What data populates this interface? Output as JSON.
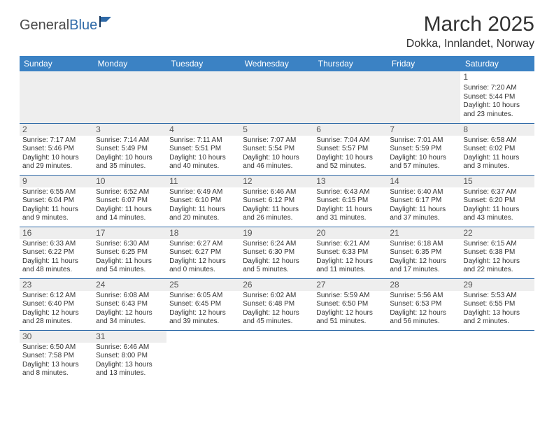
{
  "brand": {
    "part1": "General",
    "part2": "Blue"
  },
  "title": "March 2025",
  "location": "Dokka, Innlandet, Norway",
  "colors": {
    "header_bg": "#3b82c4",
    "header_text": "#ffffff",
    "rule": "#2f6aa8",
    "shade": "#eeeeee",
    "text": "#333333"
  },
  "day_headers": [
    "Sunday",
    "Monday",
    "Tuesday",
    "Wednesday",
    "Thursday",
    "Friday",
    "Saturday"
  ],
  "weeks": [
    [
      null,
      null,
      null,
      null,
      null,
      null,
      {
        "n": "1",
        "sunrise": "Sunrise: 7:20 AM",
        "sunset": "Sunset: 5:44 PM",
        "daylight": "Daylight: 10 hours and 23 minutes."
      }
    ],
    [
      {
        "n": "2",
        "sunrise": "Sunrise: 7:17 AM",
        "sunset": "Sunset: 5:46 PM",
        "daylight": "Daylight: 10 hours and 29 minutes."
      },
      {
        "n": "3",
        "sunrise": "Sunrise: 7:14 AM",
        "sunset": "Sunset: 5:49 PM",
        "daylight": "Daylight: 10 hours and 35 minutes."
      },
      {
        "n": "4",
        "sunrise": "Sunrise: 7:11 AM",
        "sunset": "Sunset: 5:51 PM",
        "daylight": "Daylight: 10 hours and 40 minutes."
      },
      {
        "n": "5",
        "sunrise": "Sunrise: 7:07 AM",
        "sunset": "Sunset: 5:54 PM",
        "daylight": "Daylight: 10 hours and 46 minutes."
      },
      {
        "n": "6",
        "sunrise": "Sunrise: 7:04 AM",
        "sunset": "Sunset: 5:57 PM",
        "daylight": "Daylight: 10 hours and 52 minutes."
      },
      {
        "n": "7",
        "sunrise": "Sunrise: 7:01 AM",
        "sunset": "Sunset: 5:59 PM",
        "daylight": "Daylight: 10 hours and 57 minutes."
      },
      {
        "n": "8",
        "sunrise": "Sunrise: 6:58 AM",
        "sunset": "Sunset: 6:02 PM",
        "daylight": "Daylight: 11 hours and 3 minutes."
      }
    ],
    [
      {
        "n": "9",
        "sunrise": "Sunrise: 6:55 AM",
        "sunset": "Sunset: 6:04 PM",
        "daylight": "Daylight: 11 hours and 9 minutes."
      },
      {
        "n": "10",
        "sunrise": "Sunrise: 6:52 AM",
        "sunset": "Sunset: 6:07 PM",
        "daylight": "Daylight: 11 hours and 14 minutes."
      },
      {
        "n": "11",
        "sunrise": "Sunrise: 6:49 AM",
        "sunset": "Sunset: 6:10 PM",
        "daylight": "Daylight: 11 hours and 20 minutes."
      },
      {
        "n": "12",
        "sunrise": "Sunrise: 6:46 AM",
        "sunset": "Sunset: 6:12 PM",
        "daylight": "Daylight: 11 hours and 26 minutes."
      },
      {
        "n": "13",
        "sunrise": "Sunrise: 6:43 AM",
        "sunset": "Sunset: 6:15 PM",
        "daylight": "Daylight: 11 hours and 31 minutes."
      },
      {
        "n": "14",
        "sunrise": "Sunrise: 6:40 AM",
        "sunset": "Sunset: 6:17 PM",
        "daylight": "Daylight: 11 hours and 37 minutes."
      },
      {
        "n": "15",
        "sunrise": "Sunrise: 6:37 AM",
        "sunset": "Sunset: 6:20 PM",
        "daylight": "Daylight: 11 hours and 43 minutes."
      }
    ],
    [
      {
        "n": "16",
        "sunrise": "Sunrise: 6:33 AM",
        "sunset": "Sunset: 6:22 PM",
        "daylight": "Daylight: 11 hours and 48 minutes."
      },
      {
        "n": "17",
        "sunrise": "Sunrise: 6:30 AM",
        "sunset": "Sunset: 6:25 PM",
        "daylight": "Daylight: 11 hours and 54 minutes."
      },
      {
        "n": "18",
        "sunrise": "Sunrise: 6:27 AM",
        "sunset": "Sunset: 6:27 PM",
        "daylight": "Daylight: 12 hours and 0 minutes."
      },
      {
        "n": "19",
        "sunrise": "Sunrise: 6:24 AM",
        "sunset": "Sunset: 6:30 PM",
        "daylight": "Daylight: 12 hours and 5 minutes."
      },
      {
        "n": "20",
        "sunrise": "Sunrise: 6:21 AM",
        "sunset": "Sunset: 6:33 PM",
        "daylight": "Daylight: 12 hours and 11 minutes."
      },
      {
        "n": "21",
        "sunrise": "Sunrise: 6:18 AM",
        "sunset": "Sunset: 6:35 PM",
        "daylight": "Daylight: 12 hours and 17 minutes."
      },
      {
        "n": "22",
        "sunrise": "Sunrise: 6:15 AM",
        "sunset": "Sunset: 6:38 PM",
        "daylight": "Daylight: 12 hours and 22 minutes."
      }
    ],
    [
      {
        "n": "23",
        "sunrise": "Sunrise: 6:12 AM",
        "sunset": "Sunset: 6:40 PM",
        "daylight": "Daylight: 12 hours and 28 minutes."
      },
      {
        "n": "24",
        "sunrise": "Sunrise: 6:08 AM",
        "sunset": "Sunset: 6:43 PM",
        "daylight": "Daylight: 12 hours and 34 minutes."
      },
      {
        "n": "25",
        "sunrise": "Sunrise: 6:05 AM",
        "sunset": "Sunset: 6:45 PM",
        "daylight": "Daylight: 12 hours and 39 minutes."
      },
      {
        "n": "26",
        "sunrise": "Sunrise: 6:02 AM",
        "sunset": "Sunset: 6:48 PM",
        "daylight": "Daylight: 12 hours and 45 minutes."
      },
      {
        "n": "27",
        "sunrise": "Sunrise: 5:59 AM",
        "sunset": "Sunset: 6:50 PM",
        "daylight": "Daylight: 12 hours and 51 minutes."
      },
      {
        "n": "28",
        "sunrise": "Sunrise: 5:56 AM",
        "sunset": "Sunset: 6:53 PM",
        "daylight": "Daylight: 12 hours and 56 minutes."
      },
      {
        "n": "29",
        "sunrise": "Sunrise: 5:53 AM",
        "sunset": "Sunset: 6:55 PM",
        "daylight": "Daylight: 13 hours and 2 minutes."
      }
    ],
    [
      {
        "n": "30",
        "sunrise": "Sunrise: 6:50 AM",
        "sunset": "Sunset: 7:58 PM",
        "daylight": "Daylight: 13 hours and 8 minutes."
      },
      {
        "n": "31",
        "sunrise": "Sunrise: 6:46 AM",
        "sunset": "Sunset: 8:00 PM",
        "daylight": "Daylight: 13 hours and 13 minutes."
      },
      null,
      null,
      null,
      null,
      null
    ]
  ]
}
